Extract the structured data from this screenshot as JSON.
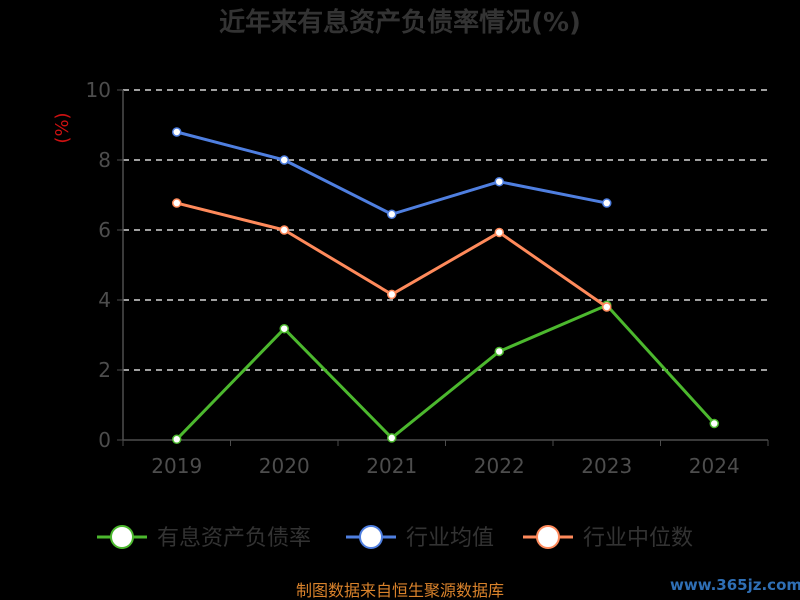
{
  "chart_data": {
    "type": "line",
    "title": "近年来有息资产负债率情况(%)",
    "ylabel": "(%)",
    "categories": [
      "2019",
      "2020",
      "2021",
      "2022",
      "2023",
      "2024"
    ],
    "ylim": [
      0,
      10
    ],
    "yticks": [
      0,
      2,
      4,
      6,
      8,
      10
    ],
    "grid": true,
    "legend_position": "bottom",
    "series": [
      {
        "name": "有息资产负债率",
        "color": "#4cb82e",
        "values": [
          0.02,
          3.18,
          0.06,
          2.53,
          3.85,
          0.47
        ]
      },
      {
        "name": "行业均值",
        "color": "#4f7fe0",
        "values": [
          8.8,
          8.0,
          6.45,
          7.38,
          6.77,
          null
        ]
      },
      {
        "name": "行业中位数",
        "color": "#ff8a5b",
        "values": [
          6.77,
          6.0,
          4.16,
          5.93,
          3.8,
          null
        ]
      }
    ]
  },
  "footer": {
    "source": "制图数据来自恒生聚源数据库",
    "watermark": "www.365jz.com"
  }
}
